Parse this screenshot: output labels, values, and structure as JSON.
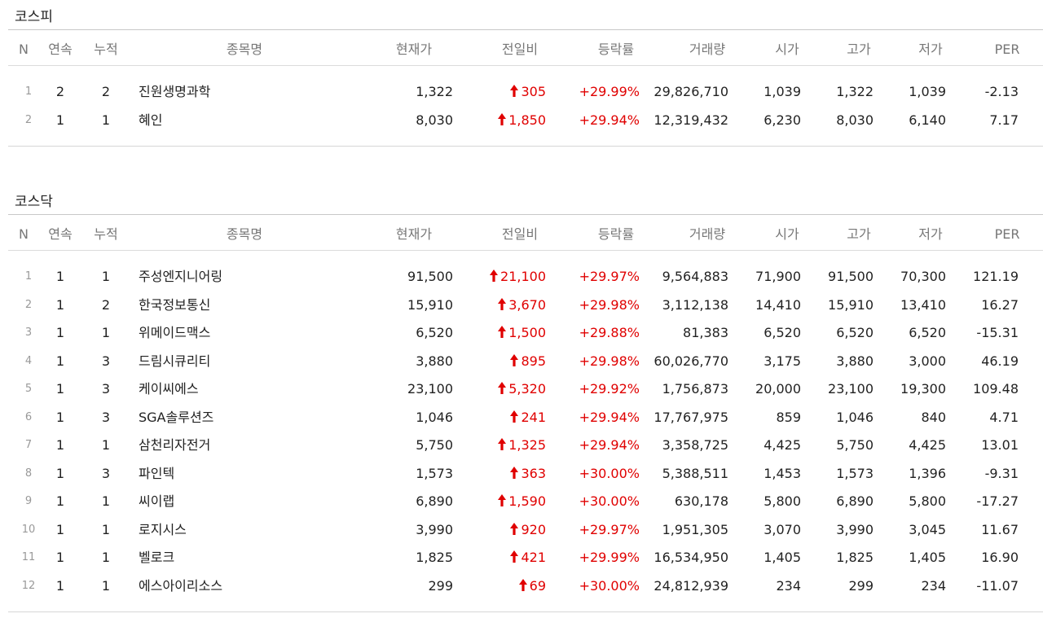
{
  "headers": {
    "n": "N",
    "consecutive": "연속",
    "cumulative": "누적",
    "name": "종목명",
    "price": "현재가",
    "change": "전일비",
    "rate": "등락률",
    "volume": "거래량",
    "open": "시가",
    "high": "고가",
    "low": "저가",
    "per": "PER"
  },
  "colors": {
    "up": "#e00000",
    "header_text": "#777777",
    "index_text": "#999999"
  },
  "arrow_icon": "red-up-arrow-icon",
  "sections": [
    {
      "title": "코스피",
      "rows": [
        {
          "n": "1",
          "consecutive": "2",
          "cumulative": "2",
          "name": "진원생명과학",
          "price": "1,322",
          "change": "305",
          "rate": "+29.99%",
          "volume": "29,826,710",
          "open": "1,039",
          "high": "1,322",
          "low": "1,039",
          "per": "-2.13"
        },
        {
          "n": "2",
          "consecutive": "1",
          "cumulative": "1",
          "name": "혜인",
          "price": "8,030",
          "change": "1,850",
          "rate": "+29.94%",
          "volume": "12,319,432",
          "open": "6,230",
          "high": "8,030",
          "low": "6,140",
          "per": "7.17"
        }
      ]
    },
    {
      "title": "코스닥",
      "rows": [
        {
          "n": "1",
          "consecutive": "1",
          "cumulative": "1",
          "name": "주성엔지니어링",
          "price": "91,500",
          "change": "21,100",
          "rate": "+29.97%",
          "volume": "9,564,883",
          "open": "71,900",
          "high": "91,500",
          "low": "70,300",
          "per": "121.19"
        },
        {
          "n": "2",
          "consecutive": "1",
          "cumulative": "2",
          "name": "한국정보통신",
          "price": "15,910",
          "change": "3,670",
          "rate": "+29.98%",
          "volume": "3,112,138",
          "open": "14,410",
          "high": "15,910",
          "low": "13,410",
          "per": "16.27"
        },
        {
          "n": "3",
          "consecutive": "1",
          "cumulative": "1",
          "name": "위메이드맥스",
          "price": "6,520",
          "change": "1,500",
          "rate": "+29.88%",
          "volume": "81,383",
          "open": "6,520",
          "high": "6,520",
          "low": "6,520",
          "per": "-15.31"
        },
        {
          "n": "4",
          "consecutive": "1",
          "cumulative": "3",
          "name": "드림시큐리티",
          "price": "3,880",
          "change": "895",
          "rate": "+29.98%",
          "volume": "60,026,770",
          "open": "3,175",
          "high": "3,880",
          "low": "3,000",
          "per": "46.19"
        },
        {
          "n": "5",
          "consecutive": "1",
          "cumulative": "3",
          "name": "케이씨에스",
          "price": "23,100",
          "change": "5,320",
          "rate": "+29.92%",
          "volume": "1,756,873",
          "open": "20,000",
          "high": "23,100",
          "low": "19,300",
          "per": "109.48"
        },
        {
          "n": "6",
          "consecutive": "1",
          "cumulative": "3",
          "name": "SGA솔루션즈",
          "price": "1,046",
          "change": "241",
          "rate": "+29.94%",
          "volume": "17,767,975",
          "open": "859",
          "high": "1,046",
          "low": "840",
          "per": "4.71"
        },
        {
          "n": "7",
          "consecutive": "1",
          "cumulative": "1",
          "name": "삼천리자전거",
          "price": "5,750",
          "change": "1,325",
          "rate": "+29.94%",
          "volume": "3,358,725",
          "open": "4,425",
          "high": "5,750",
          "low": "4,425",
          "per": "13.01"
        },
        {
          "n": "8",
          "consecutive": "1",
          "cumulative": "3",
          "name": "파인텍",
          "price": "1,573",
          "change": "363",
          "rate": "+30.00%",
          "volume": "5,388,511",
          "open": "1,453",
          "high": "1,573",
          "low": "1,396",
          "per": "-9.31"
        },
        {
          "n": "9",
          "consecutive": "1",
          "cumulative": "1",
          "name": "씨이랩",
          "price": "6,890",
          "change": "1,590",
          "rate": "+30.00%",
          "volume": "630,178",
          "open": "5,800",
          "high": "6,890",
          "low": "5,800",
          "per": "-17.27"
        },
        {
          "n": "10",
          "consecutive": "1",
          "cumulative": "1",
          "name": "로지시스",
          "price": "3,990",
          "change": "920",
          "rate": "+29.97%",
          "volume": "1,951,305",
          "open": "3,070",
          "high": "3,990",
          "low": "3,045",
          "per": "11.67"
        },
        {
          "n": "11",
          "consecutive": "1",
          "cumulative": "1",
          "name": "벨로크",
          "price": "1,825",
          "change": "421",
          "rate": "+29.99%",
          "volume": "16,534,950",
          "open": "1,405",
          "high": "1,825",
          "low": "1,405",
          "per": "16.90"
        },
        {
          "n": "12",
          "consecutive": "1",
          "cumulative": "1",
          "name": "에스아이리소스",
          "price": "299",
          "change": "69",
          "rate": "+30.00%",
          "volume": "24,812,939",
          "open": "234",
          "high": "299",
          "low": "234",
          "per": "-11.07"
        }
      ]
    }
  ]
}
